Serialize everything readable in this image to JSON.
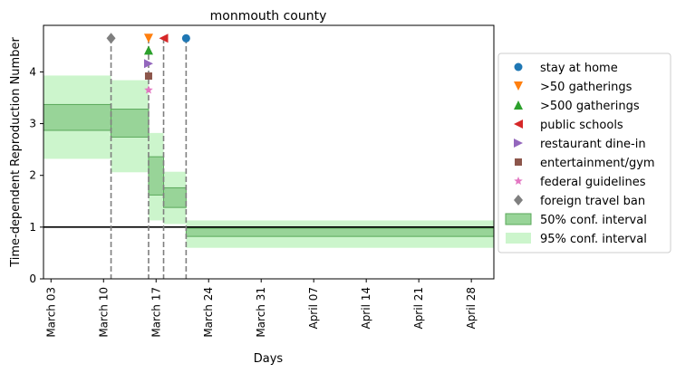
{
  "chart_data": {
    "type": "step",
    "title": "monmouth county",
    "xlabel": "Days",
    "ylabel": "Time-dependent Reproduction Number",
    "xlim": [
      "2020-03-02",
      "2020-05-01"
    ],
    "ylim": [
      0,
      4.9
    ],
    "x_ticks": [
      {
        "date": "2020-03-03",
        "label": "March 03"
      },
      {
        "date": "2020-03-10",
        "label": "March 10"
      },
      {
        "date": "2020-03-17",
        "label": "March 17"
      },
      {
        "date": "2020-03-24",
        "label": "March 24"
      },
      {
        "date": "2020-03-31",
        "label": "March 31"
      },
      {
        "date": "2020-04-07",
        "label": "April 07"
      },
      {
        "date": "2020-04-14",
        "label": "April 14"
      },
      {
        "date": "2020-04-21",
        "label": "April 21"
      },
      {
        "date": "2020-04-28",
        "label": "April 28"
      }
    ],
    "y_ticks": [
      0,
      1,
      2,
      3,
      4
    ],
    "reference_line": {
      "y": 1,
      "color": "#000000"
    },
    "segments": [
      {
        "start": "2020-03-02",
        "end": "2020-03-11",
        "ci50": [
          2.87,
          3.37
        ],
        "ci95": [
          2.32,
          3.93
        ]
      },
      {
        "start": "2020-03-11",
        "end": "2020-03-16",
        "ci50": [
          2.74,
          3.28
        ],
        "ci95": [
          2.06,
          3.84
        ]
      },
      {
        "start": "2020-03-16",
        "end": "2020-03-18",
        "ci50": [
          1.62,
          2.36
        ],
        "ci95": [
          1.13,
          2.82
        ]
      },
      {
        "start": "2020-03-18",
        "end": "2020-03-21",
        "ci50": [
          1.38,
          1.76
        ],
        "ci95": [
          1.06,
          2.07
        ]
      },
      {
        "start": "2020-03-21",
        "end": "2020-05-01",
        "ci50": [
          0.82,
          0.98
        ],
        "ci95": [
          0.6,
          1.13
        ]
      }
    ],
    "interventions": [
      {
        "name": "stay at home",
        "date": "2020-03-21",
        "y": 4.65,
        "marker": "circle",
        "color": "#1f77b4"
      },
      {
        "name": ">50 gatherings",
        "date": "2020-03-16",
        "y": 4.65,
        "marker": "triangle-down",
        "color": "#ff7f0e"
      },
      {
        "name": ">500 gatherings",
        "date": "2020-03-16",
        "y": 4.42,
        "marker": "triangle-up",
        "color": "#2ca02c"
      },
      {
        "name": "public schools",
        "date": "2020-03-18",
        "y": 4.65,
        "marker": "triangle-left",
        "color": "#d62728"
      },
      {
        "name": "restaurant dine-in",
        "date": "2020-03-16",
        "y": 4.16,
        "marker": "triangle-right",
        "color": "#9467bd"
      },
      {
        "name": "entertainment/gym",
        "date": "2020-03-16",
        "y": 3.92,
        "marker": "square",
        "color": "#8c564b"
      },
      {
        "name": "federal guidelines",
        "date": "2020-03-16",
        "y": 3.65,
        "marker": "star",
        "color": "#e377c2"
      },
      {
        "name": "foreign travel ban",
        "date": "2020-03-11",
        "y": 4.65,
        "marker": "diamond",
        "color": "#7f7f7f"
      }
    ],
    "vlines": [
      "2020-03-11",
      "2020-03-16",
      "2020-03-18",
      "2020-03-21"
    ],
    "legend": {
      "placement": "right",
      "ci50_label": "50% conf. interval",
      "ci95_label": "95% conf. interval"
    },
    "colors": {
      "ci50_fill": "#98d498",
      "ci50_edge": "#5aa85a",
      "ci95_fill": "#ccf5cc",
      "vline": "#7f7f7f"
    }
  }
}
